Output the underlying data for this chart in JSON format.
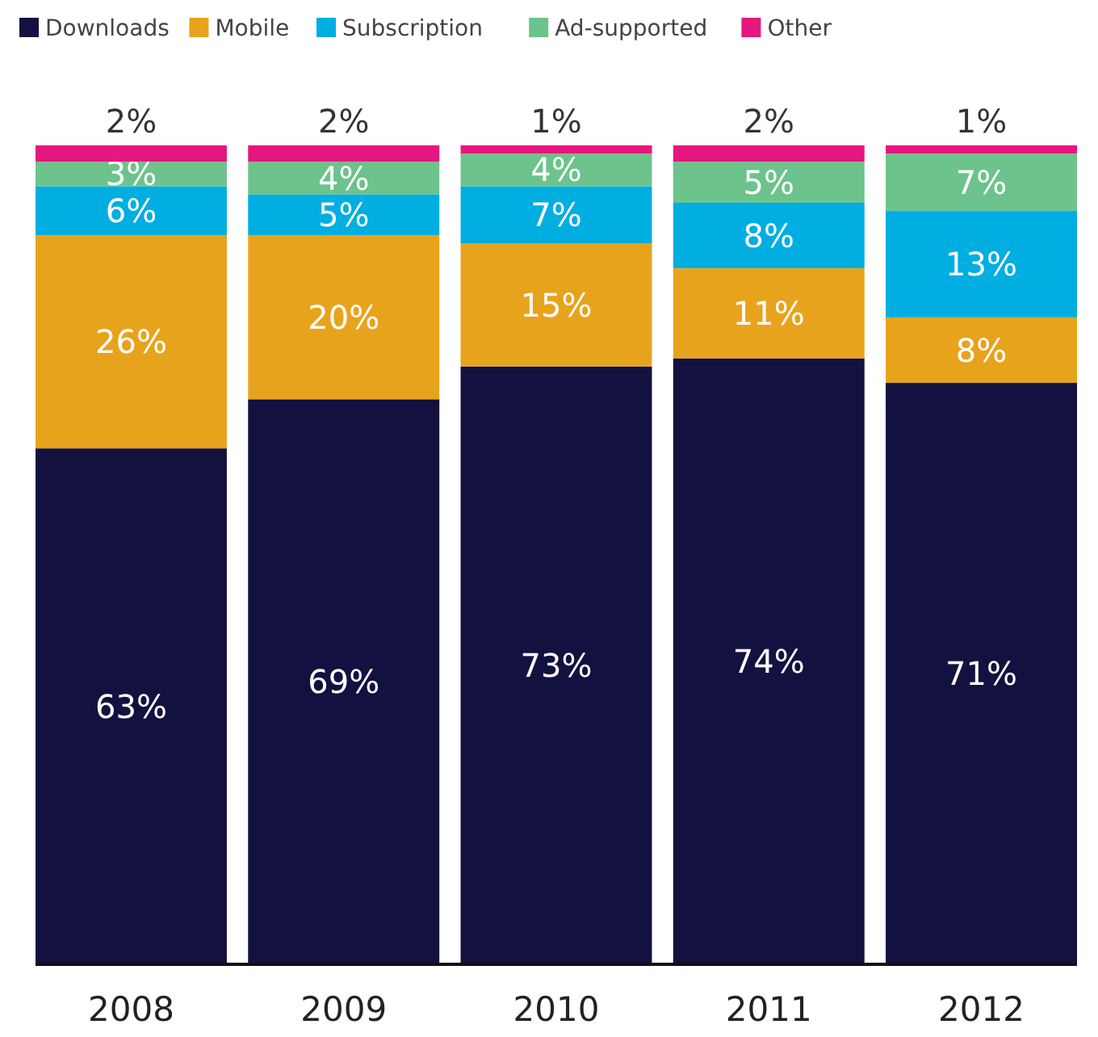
{
  "chart_data": {
    "type": "bar",
    "stacked": true,
    "legend": "top left",
    "categories": [
      "2008",
      "2009",
      "2010",
      "2011",
      "2012"
    ],
    "series": [
      {
        "name": "Downloads",
        "color": "#13113f",
        "values": [
          63,
          69,
          73,
          74,
          71
        ],
        "value_labels": [
          "63%",
          "69%",
          "73%",
          "74%",
          "71%"
        ]
      },
      {
        "name": "Mobile",
        "color": "#e8a31d",
        "values": [
          26,
          20,
          15,
          11,
          8
        ],
        "value_labels": [
          "26%",
          "20%",
          "15%",
          "11%",
          "8%"
        ]
      },
      {
        "name": "Subscription",
        "color": "#00aee2",
        "values": [
          6,
          5,
          7,
          8,
          13
        ],
        "value_labels": [
          "6%",
          "5%",
          "7%",
          "8%",
          "13%"
        ]
      },
      {
        "name": "Ad-supported",
        "color": "#6cc38c",
        "values": [
          3,
          4,
          4,
          5,
          7
        ],
        "value_labels": [
          "3%",
          "4%",
          "4%",
          "5%",
          "7%"
        ]
      },
      {
        "name": "Other",
        "color": "#e6177f",
        "values": [
          2,
          2,
          1,
          2,
          1
        ],
        "value_labels": [
          "2%",
          "2%",
          "1%",
          "2%",
          "1%"
        ]
      }
    ]
  }
}
